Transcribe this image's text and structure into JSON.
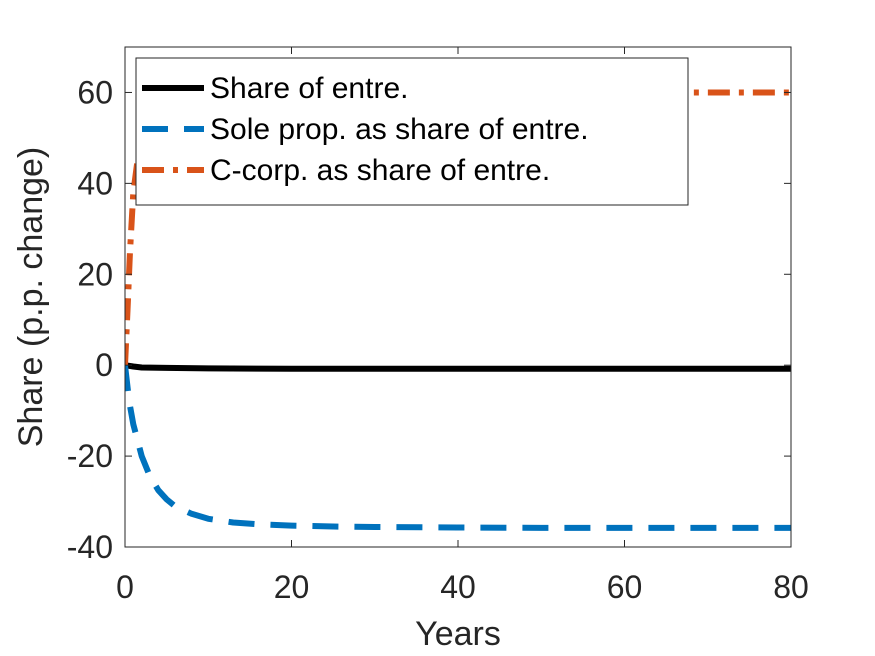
{
  "chart_data": {
    "type": "line",
    "title": "",
    "xlabel": "Years",
    "ylabel": "Share (p.p. change)",
    "xlim": [
      0,
      80
    ],
    "ylim": [
      -40,
      70
    ],
    "xticks": [
      0,
      20,
      40,
      60,
      80
    ],
    "yticks": [
      -40,
      -20,
      0,
      20,
      40,
      60
    ],
    "grid": false,
    "legend_position": "top-left",
    "series": [
      {
        "name": "Share of entre.",
        "color": "#000000",
        "style": "solid",
        "x": [
          0,
          1,
          2,
          5,
          10,
          20,
          30,
          40,
          50,
          60,
          70,
          80
        ],
        "y": [
          0,
          -0.3,
          -0.5,
          -0.6,
          -0.7,
          -0.8,
          -0.8,
          -0.8,
          -0.8,
          -0.8,
          -0.8,
          -0.8
        ]
      },
      {
        "name": "Sole prop. as share of entre.",
        "color": "#0072BD",
        "style": "dashed",
        "x": [
          0,
          0.5,
          1,
          2,
          3,
          4,
          5,
          6,
          8,
          10,
          13,
          16,
          20,
          25,
          30,
          40,
          50,
          60,
          70,
          80
        ],
        "y": [
          0,
          -8,
          -13,
          -20,
          -24.5,
          -27.5,
          -29.5,
          -31,
          -32.7,
          -33.8,
          -34.6,
          -35,
          -35.3,
          -35.5,
          -35.6,
          -35.7,
          -35.8,
          -35.8,
          -35.8,
          -35.8
        ]
      },
      {
        "name": "C-corp. as share of entre.",
        "color": "#D95319",
        "style": "dashdot",
        "x": [
          0,
          0.3,
          0.6,
          1,
          1.5,
          2,
          3,
          4,
          5,
          6,
          8,
          10,
          15,
          20,
          30,
          40,
          50,
          60,
          70,
          80
        ],
        "y": [
          0,
          12,
          25,
          38,
          45,
          49,
          53,
          55,
          56.5,
          57.5,
          58.5,
          59,
          59.5,
          59.8,
          60,
          60,
          60,
          60,
          60,
          60
        ]
      }
    ]
  }
}
